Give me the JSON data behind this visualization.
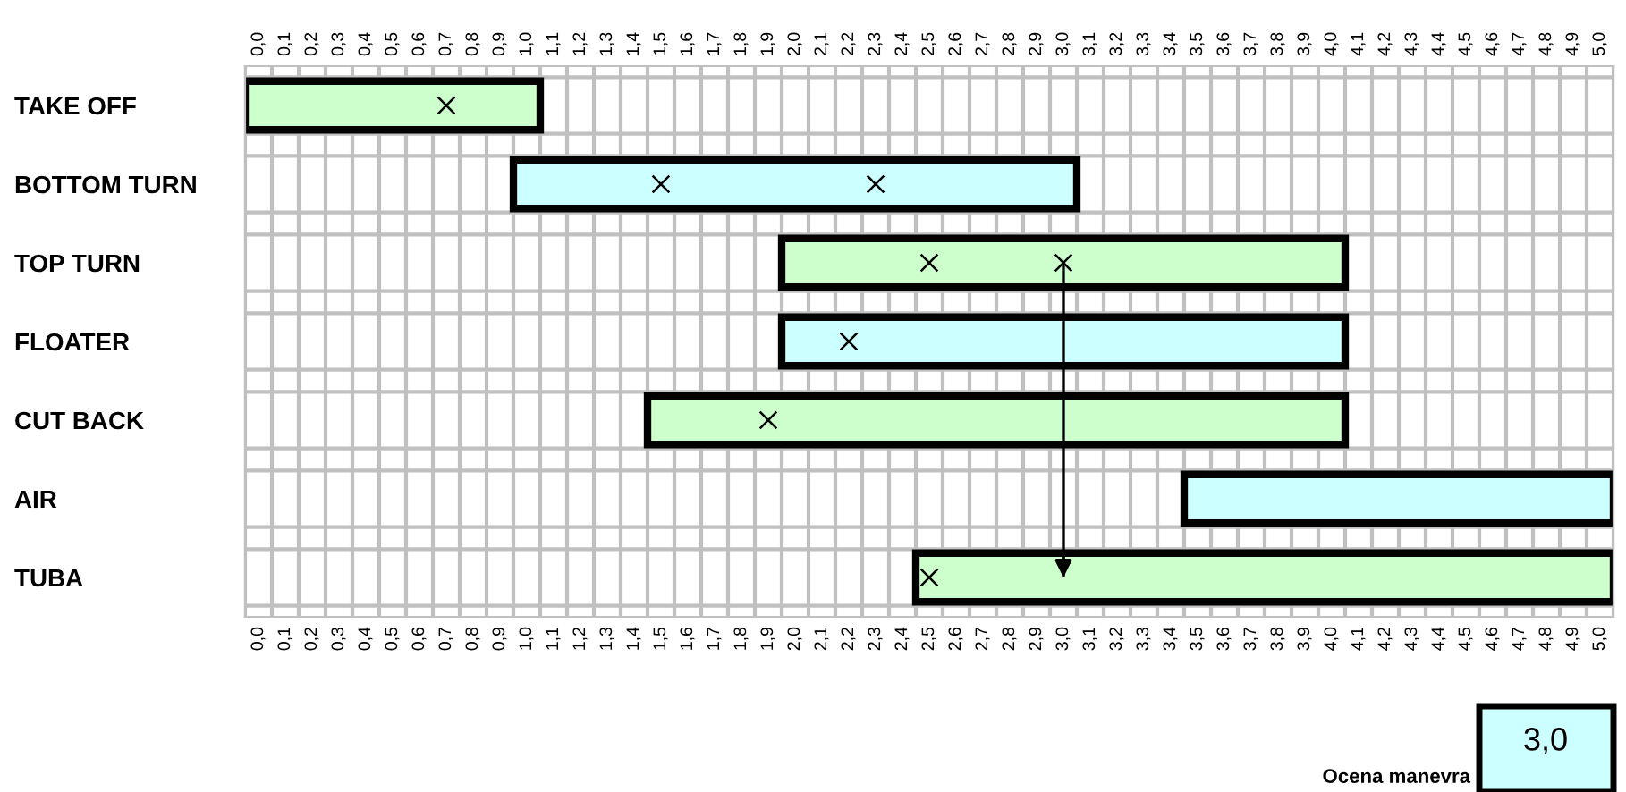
{
  "chart_data": {
    "type": "bar",
    "orientation": "horizontal",
    "categories": [
      "TAKE OFF",
      "BOTTOM TURN",
      "TOP TURN",
      "FLOATER",
      "CUT BACK",
      "AIR",
      "TUBA"
    ],
    "series": [
      {
        "values": [
          1.1,
          2.1,
          2.1,
          2.1,
          2.6,
          1.6,
          2.6
        ],
        "base": [
          -0.05,
          0.95,
          1.95,
          1.95,
          1.45,
          3.45,
          2.45
        ],
        "colors": [
          "#ccffcc",
          "#ccffff",
          "#ccffcc",
          "#ccffff",
          "#ccffcc",
          "#ccffff",
          "#ccffcc"
        ]
      },
      {
        "type": "scatter",
        "marker": "cross",
        "color": "#000000",
        "values": [
          0.7,
          1.5,
          2.5,
          2.2,
          1.9,
          null,
          2.5
        ]
      },
      {
        "type": "scatter",
        "marker": "cross",
        "color": "#000000",
        "values": [
          null,
          2.3,
          3.0,
          null,
          null,
          null,
          null
        ]
      }
    ],
    "xlim": [
      -0.05,
      5.05
    ],
    "xticks": [
      {
        "value": 0.0,
        "label": "0,0"
      },
      {
        "value": 0.1,
        "label": "0,1"
      },
      {
        "value": 0.2,
        "label": "0,2"
      },
      {
        "value": 0.3,
        "label": "0,3"
      },
      {
        "value": 0.4,
        "label": "0,4"
      },
      {
        "value": 0.5,
        "label": "0,5"
      },
      {
        "value": 0.6,
        "label": "0,6"
      },
      {
        "value": 0.7,
        "label": "0,7"
      },
      {
        "value": 0.8,
        "label": "0,8"
      },
      {
        "value": 0.9,
        "label": "0,9"
      },
      {
        "value": 1.0,
        "label": "1,0"
      },
      {
        "value": 1.1,
        "label": "1,1"
      },
      {
        "value": 1.2,
        "label": "1,2"
      },
      {
        "value": 1.3,
        "label": "1,3"
      },
      {
        "value": 1.4,
        "label": "1,4"
      },
      {
        "value": 1.5,
        "label": "1,5"
      },
      {
        "value": 1.6,
        "label": "1,6"
      },
      {
        "value": 1.7,
        "label": "1,7"
      },
      {
        "value": 1.8,
        "label": "1,8"
      },
      {
        "value": 1.9,
        "label": "1,9"
      },
      {
        "value": 2.0,
        "label": "2,0"
      },
      {
        "value": 2.1,
        "label": "2,1"
      },
      {
        "value": 2.2,
        "label": "2,2"
      },
      {
        "value": 2.3,
        "label": "2,3"
      },
      {
        "value": 2.4,
        "label": "2,4"
      },
      {
        "value": 2.5,
        "label": "2,5"
      },
      {
        "value": 2.6,
        "label": "2,6"
      },
      {
        "value": 2.7,
        "label": "2,7"
      },
      {
        "value": 2.8,
        "label": "2,8"
      },
      {
        "value": 2.9,
        "label": "2,9"
      },
      {
        "value": 3.0,
        "label": "3,0"
      },
      {
        "value": 3.1,
        "label": "3,1"
      },
      {
        "value": 3.2,
        "label": "3,2"
      },
      {
        "value": 3.3,
        "label": "3,3"
      },
      {
        "value": 3.4,
        "label": "3,4"
      },
      {
        "value": 3.5,
        "label": "3,5"
      },
      {
        "value": 3.6,
        "label": "3,6"
      },
      {
        "value": 3.7,
        "label": "3,7"
      },
      {
        "value": 3.8,
        "label": "3,8"
      },
      {
        "value": 3.9,
        "label": "3,9"
      },
      {
        "value": 4.0,
        "label": "4,0"
      },
      {
        "value": 4.1,
        "label": "4,1"
      },
      {
        "value": 4.2,
        "label": "4,2"
      },
      {
        "value": 4.3,
        "label": "4,3"
      },
      {
        "value": 4.4,
        "label": "4,4"
      },
      {
        "value": 4.5,
        "label": "4,5"
      },
      {
        "value": 4.6,
        "label": "4,6"
      },
      {
        "value": 4.7,
        "label": "4,7"
      },
      {
        "value": 4.8,
        "label": "4,8"
      },
      {
        "value": 4.9,
        "label": "4,9"
      },
      {
        "value": 5.0,
        "label": "5,0"
      }
    ],
    "x2lim": [
      -0.05,
      5.05
    ],
    "x2ticks": [
      {
        "value": 0.0,
        "label": "0,0"
      },
      {
        "value": 0.1,
        "label": "0,1"
      },
      {
        "value": 0.2,
        "label": "0,2"
      },
      {
        "value": 0.3,
        "label": "0,3"
      },
      {
        "value": 0.4,
        "label": "0,4"
      },
      {
        "value": 0.5,
        "label": "0,5"
      },
      {
        "value": 0.6,
        "label": "0,6"
      },
      {
        "value": 0.7,
        "label": "0,7"
      },
      {
        "value": 0.8,
        "label": "0,8"
      },
      {
        "value": 0.9,
        "label": "0,9"
      },
      {
        "value": 1.0,
        "label": "1,0"
      },
      {
        "value": 1.1,
        "label": "1,1"
      },
      {
        "value": 1.2,
        "label": "1,2"
      },
      {
        "value": 1.3,
        "label": "1,3"
      },
      {
        "value": 1.4,
        "label": "1,4"
      },
      {
        "value": 1.5,
        "label": "1,5"
      },
      {
        "value": 1.6,
        "label": "1,6"
      },
      {
        "value": 1.7,
        "label": "1,7"
      },
      {
        "value": 1.8,
        "label": "1,8"
      },
      {
        "value": 1.9,
        "label": "1,9"
      },
      {
        "value": 2.0,
        "label": "2,0"
      },
      {
        "value": 2.1,
        "label": "2,1"
      },
      {
        "value": 2.2,
        "label": "2,2"
      },
      {
        "value": 2.3,
        "label": "2,3"
      },
      {
        "value": 2.4,
        "label": "2,4"
      },
      {
        "value": 2.5,
        "label": "2,5"
      },
      {
        "value": 2.6,
        "label": "2,6"
      },
      {
        "value": 2.7,
        "label": "2,7"
      },
      {
        "value": 2.8,
        "label": "2,8"
      },
      {
        "value": 2.9,
        "label": "2,9"
      },
      {
        "value": 3.0,
        "label": "3,0"
      },
      {
        "value": 3.1,
        "label": "3,1"
      },
      {
        "value": 3.2,
        "label": "3,2"
      },
      {
        "value": 3.3,
        "label": "3,3"
      },
      {
        "value": 3.4,
        "label": "3,4"
      },
      {
        "value": 3.5,
        "label": "3,5"
      },
      {
        "value": 3.6,
        "label": "3,6"
      },
      {
        "value": 3.7,
        "label": "3,7"
      },
      {
        "value": 3.8,
        "label": "3,8"
      },
      {
        "value": 3.9,
        "label": "3,9"
      },
      {
        "value": 4.0,
        "label": "4,0"
      },
      {
        "value": 4.1,
        "label": "4,1"
      },
      {
        "value": 4.2,
        "label": "4,2"
      },
      {
        "value": 4.3,
        "label": "4,3"
      },
      {
        "value": 4.4,
        "label": "4,4"
      },
      {
        "value": 4.5,
        "label": "4,5"
      },
      {
        "value": 4.6,
        "label": "4,6"
      },
      {
        "value": 4.7,
        "label": "4,7"
      },
      {
        "value": 4.8,
        "label": "4,8"
      },
      {
        "value": 4.9,
        "label": "4,9"
      },
      {
        "value": 5.0,
        "label": "5,0"
      }
    ],
    "ref_lines": [
      {
        "axis": "x",
        "value": 3.0,
        "label": "3,0",
        "color": "#000000"
      }
    ],
    "annotations": [
      "Ocena manevra"
    ],
    "grid": true
  }
}
